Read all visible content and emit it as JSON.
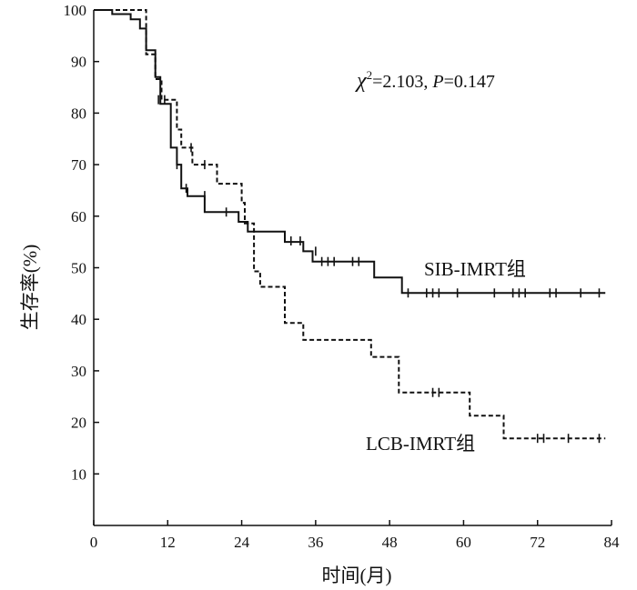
{
  "chart_data": {
    "type": "line",
    "subtype": "kaplan-meier step",
    "xlabel": "时间(月)",
    "ylabel": "生存率(%)",
    "xlim": [
      0,
      84
    ],
    "ylim": [
      0,
      100
    ],
    "xticks": [
      0,
      12,
      24,
      36,
      48,
      60,
      72,
      84
    ],
    "yticks": [
      10,
      20,
      30,
      40,
      50,
      60,
      70,
      80,
      90,
      100
    ],
    "xtick_labels": [
      "0",
      "12",
      "24",
      "36",
      "48",
      "60",
      "72",
      "84"
    ],
    "ytick_labels": [
      "10",
      "20",
      "30",
      "40",
      "50",
      "60",
      "70",
      "80",
      "90",
      "100"
    ],
    "grid": false,
    "annotation": {
      "chi": "χ",
      "chi_sup": "2",
      "chi_rest": "=2.103, ",
      "p_label": "P",
      "p_rest": "=0.147"
    },
    "series": [
      {
        "name": "SIB-IMRT组",
        "style": "solid",
        "color": "#111111",
        "steps": [
          [
            0,
            100
          ],
          [
            3,
            99.2
          ],
          [
            6,
            98.2
          ],
          [
            7.5,
            96.4
          ],
          [
            8.5,
            92.2
          ],
          [
            10,
            87
          ],
          [
            10.8,
            81.8
          ],
          [
            12.5,
            73.3
          ],
          [
            13.5,
            70
          ],
          [
            14.2,
            65.4
          ],
          [
            15.2,
            63.9
          ],
          [
            18,
            60.8
          ],
          [
            23.5,
            58.9
          ],
          [
            25,
            57
          ],
          [
            31,
            55
          ],
          [
            34,
            53.2
          ],
          [
            35.5,
            51.2
          ],
          [
            45.5,
            48.1
          ],
          [
            50,
            45.1
          ],
          [
            83,
            45.1
          ]
        ],
        "censored": [
          [
            13.5,
            70
          ],
          [
            15,
            65.4
          ],
          [
            18,
            64
          ],
          [
            21.5,
            60.8
          ],
          [
            32,
            55.2
          ],
          [
            33.5,
            55.2
          ],
          [
            36,
            53.2
          ],
          [
            37,
            51.2
          ],
          [
            38,
            51.2
          ],
          [
            39,
            51.2
          ],
          [
            42,
            51.2
          ],
          [
            43,
            51.2
          ],
          [
            51,
            45.1
          ],
          [
            54,
            45.1
          ],
          [
            55,
            45.1
          ],
          [
            56,
            45.1
          ],
          [
            59,
            45.1
          ],
          [
            65,
            45.1
          ],
          [
            68,
            45.1
          ],
          [
            69,
            45.1
          ],
          [
            70,
            45.1
          ],
          [
            74,
            45.1
          ],
          [
            75,
            45.1
          ],
          [
            79,
            45.1
          ],
          [
            82,
            45.1
          ]
        ]
      },
      {
        "name": "LCB-IMRT组",
        "style": "dashed",
        "color": "#111111",
        "steps": [
          [
            0,
            100
          ],
          [
            8.5,
            91.4
          ],
          [
            10,
            86.6
          ],
          [
            11,
            82.6
          ],
          [
            13.5,
            76.8
          ],
          [
            14.2,
            73.3
          ],
          [
            16,
            70
          ],
          [
            20,
            66.3
          ],
          [
            24,
            62.6
          ],
          [
            24.5,
            58.6
          ],
          [
            26,
            49.3
          ],
          [
            27,
            46.3
          ],
          [
            31,
            39.3
          ],
          [
            34,
            36
          ],
          [
            45,
            32.7
          ],
          [
            49.5,
            25.8
          ],
          [
            59,
            25.8
          ],
          [
            61,
            21.3
          ],
          [
            66.5,
            16.9
          ],
          [
            83,
            16.9
          ]
        ],
        "censored": [
          [
            10.5,
            82.6
          ],
          [
            11.5,
            82.6
          ],
          [
            15.8,
            73.3
          ],
          [
            18,
            70
          ],
          [
            55,
            25.8
          ],
          [
            56,
            25.8
          ],
          [
            72,
            16.9
          ],
          [
            73,
            16.9
          ],
          [
            77,
            16.9
          ],
          [
            82,
            16.9
          ]
        ]
      }
    ]
  }
}
